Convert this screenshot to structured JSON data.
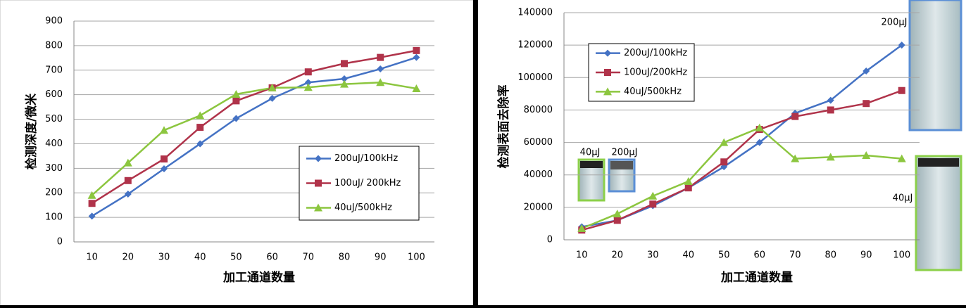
{
  "chart_data": [
    {
      "type": "line",
      "ylabel": "检测深度/微米",
      "xlabel": "加工通道数量",
      "categories": [
        "10",
        "20",
        "30",
        "40",
        "50",
        "60",
        "70",
        "80",
        "90",
        "100"
      ],
      "ylim": [
        0,
        900
      ],
      "yticks": [
        0,
        100,
        200,
        300,
        400,
        500,
        600,
        700,
        800,
        900
      ],
      "grid": true,
      "legend": "lower right",
      "series": [
        {
          "name": "200uJ/100kHz",
          "color": "#4472c4",
          "marker": "diamond",
          "values": [
            105,
            195,
            298,
            400,
            503,
            585,
            650,
            665,
            705,
            752
          ]
        },
        {
          "name": "100uJ/ 200kHz",
          "color": "#b0334a",
          "marker": "square",
          "values": [
            157,
            250,
            338,
            467,
            575,
            628,
            693,
            727,
            752,
            780
          ]
        },
        {
          "name": "40uJ/500kHz",
          "color": "#8cc63f",
          "marker": "triangle",
          "values": [
            190,
            322,
            455,
            515,
            602,
            628,
            630,
            643,
            650,
            625
          ]
        }
      ]
    },
    {
      "type": "line",
      "ylabel": "检测表面去除率",
      "xlabel": "加工通道数量",
      "categories": [
        "10",
        "20",
        "30",
        "40",
        "50",
        "60",
        "70",
        "80",
        "90",
        "100"
      ],
      "ylim": [
        0,
        140000
      ],
      "yticks": [
        0,
        20000,
        40000,
        60000,
        80000,
        100000,
        120000,
        140000
      ],
      "grid": true,
      "legend": "upper left",
      "series": [
        {
          "name": "200uJ/100kHz",
          "color": "#4472c4",
          "marker": "diamond",
          "values": [
            8000,
            12000,
            21000,
            32000,
            45000,
            60000,
            78000,
            86000,
            104000,
            120000
          ]
        },
        {
          "name": "100uJ/200kHz",
          "color": "#b0334a",
          "marker": "square",
          "values": [
            6000,
            12000,
            22000,
            32000,
            48000,
            68000,
            76000,
            80000,
            84000,
            92000
          ]
        },
        {
          "name": "40uJ/500kHz",
          "color": "#8cc63f",
          "marker": "triangle",
          "values": [
            7000,
            16000,
            27000,
            36000,
            60000,
            69000,
            50000,
            51000,
            52000,
            50000
          ]
        }
      ],
      "annotations": [
        "200μJ",
        "40μJ",
        "40μJ",
        "200μJ"
      ]
    }
  ]
}
